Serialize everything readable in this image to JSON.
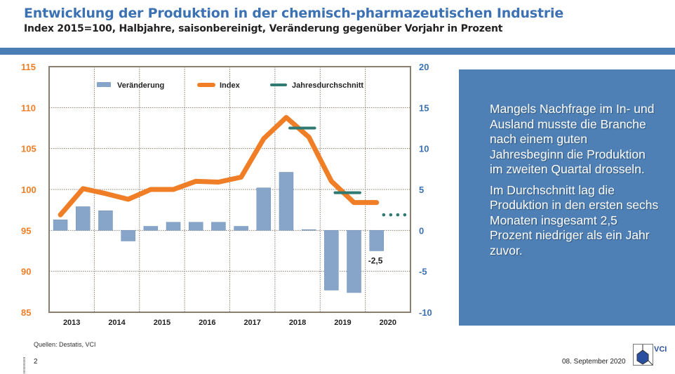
{
  "header": {
    "title": "Entwicklung der Produktion in der chemisch-pharmazeutischen Industrie",
    "subtitle": "Index 2015=100, Halbjahre, saisonbereinigt, Veränderung gegenüber Vorjahr in Prozent"
  },
  "textbox": {
    "p1": "Mangels Nachfrage im In- und Ausland musste die Branche nach einem guten Jahresbeginn die Produktion im zweiten Quartal drosseln.",
    "p2": "Im Durchschnitt lag die Produktion in den ersten sechs Monaten insgesamt 2,5 Prozent niedriger als ein Jahr zuvor."
  },
  "footer": {
    "source": "Quellen: Destatis, VCI",
    "page": "2",
    "date": "08. September 2020",
    "logo_text": "VCI"
  },
  "chart_data": {
    "type": "bar+line",
    "x": [
      "2013 H1",
      "2013 H2",
      "2014 H1",
      "2014 H2",
      "2015 H1",
      "2015 H2",
      "2016 H1",
      "2016 H2",
      "2017 H1",
      "2017 H2",
      "2018 H1",
      "2018 H2",
      "2019 H1",
      "2019 H2",
      "2020 H1"
    ],
    "xtick_labels": [
      "2013",
      "2014",
      "2015",
      "2016",
      "2017",
      "2018",
      "2019",
      "2020"
    ],
    "left_axis": {
      "ylim": [
        85,
        115
      ],
      "ticks": [
        "115",
        "110",
        "105",
        "100",
        "95",
        "90",
        "85"
      ],
      "color": "#f07e26"
    },
    "right_axis": {
      "ylim": [
        -10,
        20
      ],
      "ticks": [
        "20",
        "15",
        "10",
        "5",
        "0",
        "-5",
        "-10"
      ],
      "color": "#3c72b3"
    },
    "grid": true,
    "legend": {
      "placement": "top",
      "entries": [
        "Veränderung",
        "Index",
        "Jahresdurchschnitt"
      ]
    },
    "series": [
      {
        "name": "Veränderung",
        "type": "bar",
        "axis": "right",
        "color": "#87a5c8",
        "values": [
          1.3,
          2.9,
          2.4,
          -1.3,
          0.5,
          1.0,
          1.0,
          1.0,
          0.5,
          5.2,
          7.1,
          0.1,
          -7.3,
          -7.6,
          -2.5
        ]
      },
      {
        "name": "Index",
        "type": "line",
        "axis": "left",
        "color": "#f07e26",
        "values": [
          96.9,
          100.1,
          99.5,
          98.8,
          100.0,
          100.0,
          101.0,
          100.9,
          101.5,
          106.2,
          108.8,
          106.4,
          101.0,
          98.4,
          98.4
        ]
      },
      {
        "name": "Jahresdurchschnitt",
        "type": "segments",
        "axis": "left",
        "color": "#2f7a72",
        "values": [
          {
            "year": "2018",
            "value": 107.5
          },
          {
            "year": "2019",
            "value": 99.6
          },
          {
            "year": "2020",
            "value": 96.9,
            "style": "dotted"
          }
        ]
      }
    ],
    "annotations": [
      {
        "text": "-2,5",
        "x": "2020 H1"
      }
    ]
  }
}
